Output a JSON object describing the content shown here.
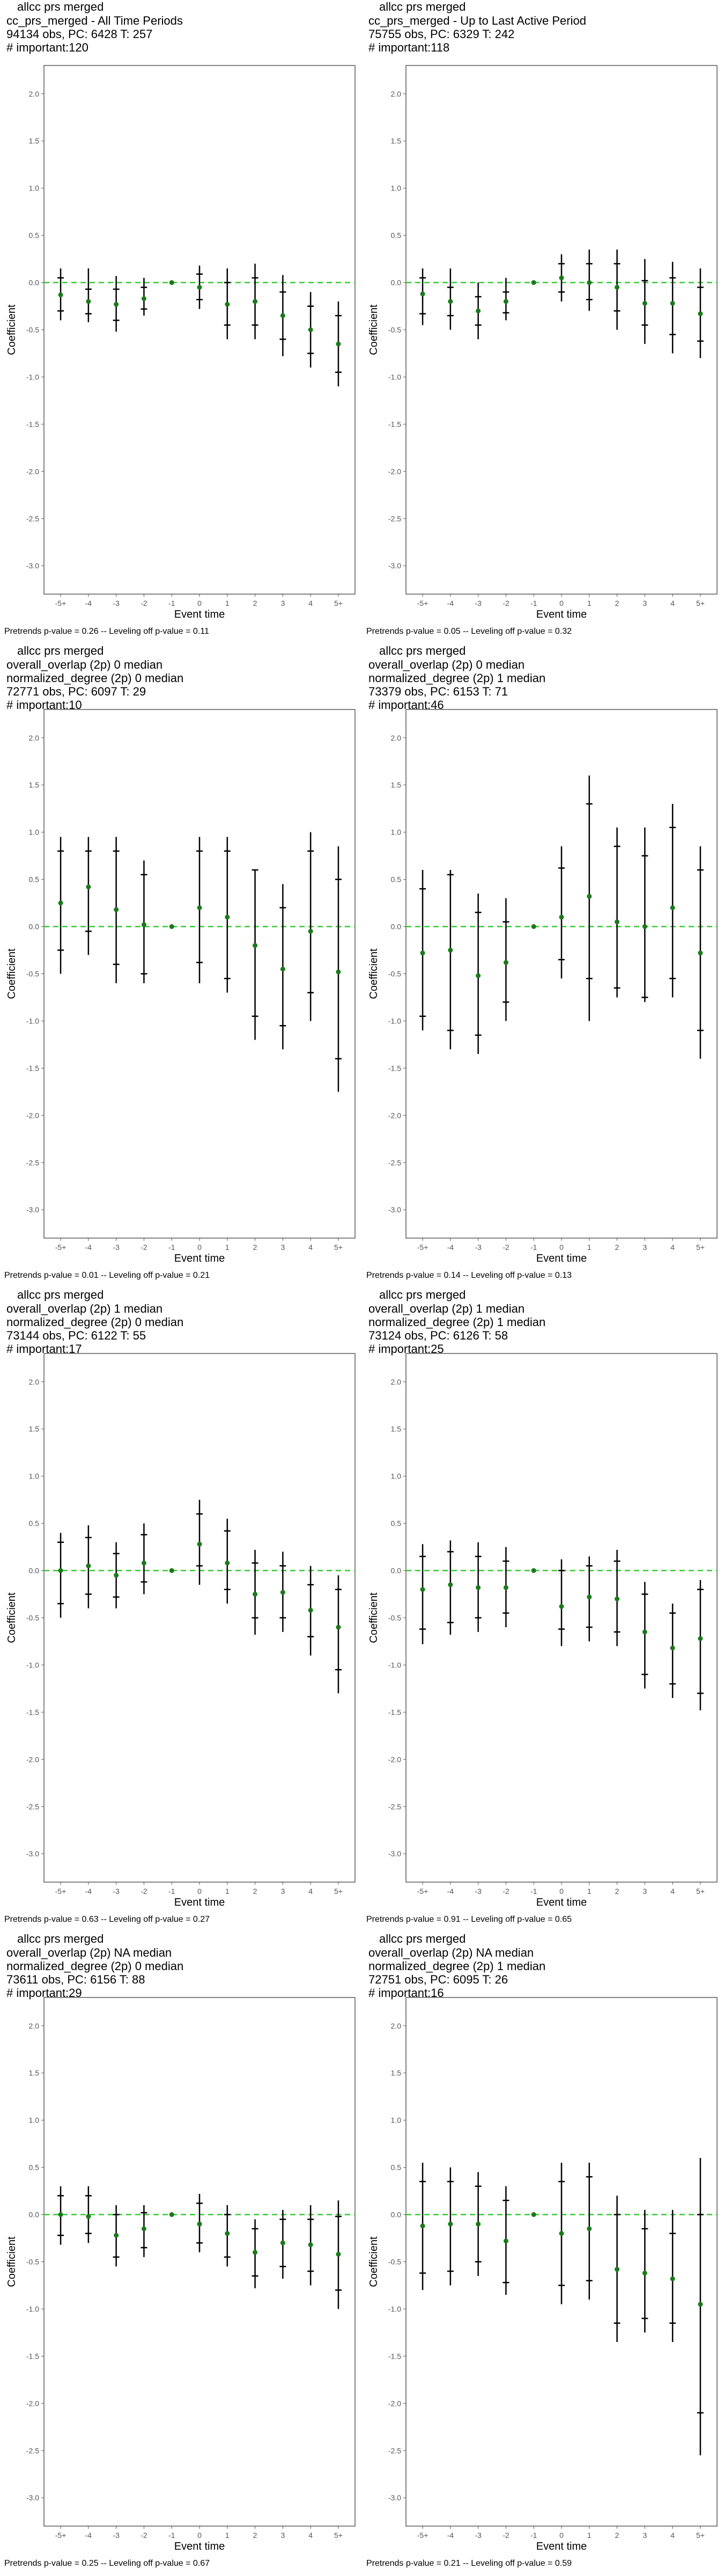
{
  "x_tick_labels": [
    "-5+",
    "-4",
    "-3",
    "-2",
    "-1",
    "0",
    "1",
    "2",
    "3",
    "4",
    "5+"
  ],
  "xlabel": "Event time",
  "ylabel": "Coefficient",
  "y_ticks": [
    2.0,
    1.5,
    1.0,
    0.5,
    0.0,
    -0.5,
    -1.0,
    -1.5,
    -2.0,
    -2.5,
    -3.0
  ],
  "y_tick_labels": [
    "2.0",
    "1.5",
    "1.0",
    "0.5",
    "0.0",
    "-0.5",
    "-1.0",
    "-1.5",
    "-2.0",
    "-2.5",
    "-3.0"
  ],
  "colors": {
    "point": "#1a7a1a",
    "reference_line": "#33cc33",
    "error_bar": "#000000",
    "panel_border": "#333333"
  },
  "chart_data": [
    {
      "type": "scatter",
      "title": "allcc prs merged",
      "subtitle": [
        "cc_prs_merged - All Time Periods",
        "94134 obs, PC: 6428 T: 257",
        "# important:120"
      ],
      "footnote": "Pretrends p-value = 0.26 -- Leveling off p-value = 0.11",
      "xlabel": "Event time",
      "ylabel": "Coefficient",
      "ylim": [
        -3.3,
        2.3
      ],
      "reference_y": 0,
      "x": [
        "-5+",
        "-4",
        "-3",
        "-2",
        "-1",
        "0",
        "1",
        "2",
        "3",
        "4",
        "5+"
      ],
      "estimate": [
        -0.13,
        -0.2,
        -0.23,
        -0.17,
        0.0,
        -0.05,
        -0.23,
        -0.2,
        -0.35,
        -0.5,
        -0.65
      ],
      "ci_outer_low": [
        -0.4,
        -0.42,
        -0.52,
        -0.35,
        0.0,
        -0.28,
        -0.6,
        -0.6,
        -0.78,
        -0.9,
        -1.1
      ],
      "ci_outer_high": [
        0.15,
        0.15,
        0.07,
        0.05,
        0.0,
        0.18,
        0.15,
        0.2,
        0.08,
        -0.1,
        -0.2
      ],
      "ci_inner_low": [
        -0.3,
        -0.33,
        -0.4,
        -0.28,
        0.0,
        -0.18,
        -0.45,
        -0.45,
        -0.6,
        -0.75,
        -0.95
      ],
      "ci_inner_high": [
        0.05,
        -0.07,
        -0.07,
        -0.05,
        0.0,
        0.09,
        0.0,
        0.05,
        -0.1,
        -0.25,
        -0.35
      ]
    },
    {
      "type": "scatter",
      "title": "allcc prs merged",
      "subtitle": [
        "cc_prs_merged - Up to Last Active Period",
        "75755 obs, PC: 6329 T: 242",
        "# important:118"
      ],
      "footnote": "Pretrends p-value = 0.05 -- Leveling off p-value = 0.32",
      "xlabel": "Event time",
      "ylabel": "Coefficient",
      "ylim": [
        -3.3,
        2.3
      ],
      "reference_y": 0,
      "x": [
        "-5+",
        "-4",
        "-3",
        "-2",
        "-1",
        "0",
        "1",
        "2",
        "3",
        "4",
        "5+"
      ],
      "estimate": [
        -0.12,
        -0.2,
        -0.3,
        -0.2,
        0.0,
        0.05,
        0.0,
        -0.05,
        -0.22,
        -0.22,
        -0.33
      ],
      "ci_outer_low": [
        -0.45,
        -0.5,
        -0.6,
        -0.4,
        0.0,
        -0.2,
        -0.3,
        -0.5,
        -0.65,
        -0.75,
        -0.8
      ],
      "ci_outer_high": [
        0.15,
        0.15,
        0.0,
        0.05,
        0.0,
        0.3,
        0.35,
        0.35,
        0.25,
        0.22,
        0.15
      ],
      "ci_inner_low": [
        -0.33,
        -0.35,
        -0.45,
        -0.32,
        0.0,
        -0.1,
        -0.18,
        -0.3,
        -0.45,
        -0.55,
        -0.62
      ],
      "ci_inner_high": [
        0.05,
        -0.05,
        -0.15,
        -0.1,
        0.0,
        0.2,
        0.2,
        0.2,
        0.02,
        0.05,
        -0.05
      ]
    },
    {
      "type": "scatter",
      "title": "allcc prs merged",
      "subtitle": [
        "overall_overlap (2p) 0 median",
        "normalized_degree (2p) 0 median",
        "72771 obs, PC: 6097 T: 29",
        "# important:10"
      ],
      "footnote": "Pretrends p-value = 0.01 -- Leveling off p-value = 0.21",
      "xlabel": "Event time",
      "ylabel": "Coefficient",
      "ylim": [
        -3.3,
        2.3
      ],
      "reference_y": 0,
      "x": [
        "-5+",
        "-4",
        "-3",
        "-2",
        "-1",
        "0",
        "1",
        "2",
        "3",
        "4",
        "5+"
      ],
      "estimate": [
        0.25,
        0.42,
        0.18,
        0.02,
        0.0,
        0.2,
        0.1,
        -0.2,
        -0.45,
        -0.05,
        -0.48
      ],
      "ci_outer_low": [
        -0.5,
        -0.3,
        -0.6,
        -0.6,
        0.0,
        -0.6,
        -0.7,
        -1.2,
        -1.3,
        -1.0,
        -1.75
      ],
      "ci_outer_high": [
        0.95,
        0.95,
        0.95,
        0.7,
        0.0,
        0.95,
        0.95,
        0.6,
        0.45,
        1.0,
        0.85
      ],
      "ci_inner_low": [
        -0.25,
        -0.05,
        -0.4,
        -0.5,
        0.0,
        -0.38,
        -0.55,
        -0.95,
        -1.05,
        -0.7,
        -1.4
      ],
      "ci_inner_high": [
        0.8,
        0.8,
        0.8,
        0.55,
        0.0,
        0.8,
        0.8,
        0.6,
        0.2,
        0.8,
        0.5
      ]
    },
    {
      "type": "scatter",
      "title": "allcc prs merged",
      "subtitle": [
        "overall_overlap (2p) 0 median",
        "normalized_degree (2p) 1 median",
        "73379 obs, PC: 6153 T: 71",
        "# important:46"
      ],
      "footnote": "Pretrends p-value = 0.14 -- Leveling off p-value = 0.13",
      "xlabel": "Event time",
      "ylabel": "Coefficient",
      "ylim": [
        -3.3,
        2.3
      ],
      "reference_y": 0,
      "x": [
        "-5+",
        "-4",
        "-3",
        "-2",
        "-1",
        "0",
        "1",
        "2",
        "3",
        "4",
        "5+"
      ],
      "estimate": [
        -0.28,
        -0.25,
        -0.52,
        -0.38,
        0.0,
        0.1,
        0.32,
        0.05,
        0.0,
        0.2,
        -0.28
      ],
      "ci_outer_low": [
        -1.1,
        -1.3,
        -1.35,
        -1.0,
        0.0,
        -0.55,
        -1.0,
        -0.75,
        -0.8,
        -0.75,
        -1.4
      ],
      "ci_outer_high": [
        0.6,
        0.6,
        0.35,
        0.3,
        0.0,
        0.85,
        1.6,
        1.05,
        1.05,
        1.3,
        0.85
      ],
      "ci_inner_low": [
        -0.95,
        -1.1,
        -1.15,
        -0.8,
        0.0,
        -0.35,
        -0.55,
        -0.65,
        -0.75,
        -0.55,
        -1.1
      ],
      "ci_inner_high": [
        0.4,
        0.55,
        0.15,
        0.05,
        0.0,
        0.62,
        1.3,
        0.85,
        0.75,
        1.05,
        0.6
      ]
    },
    {
      "type": "scatter",
      "title": "allcc prs merged",
      "subtitle": [
        "overall_overlap (2p) 1 median",
        "normalized_degree (2p) 0 median",
        "73144 obs, PC: 6122 T: 55",
        "# important:17"
      ],
      "footnote": "Pretrends p-value = 0.63 -- Leveling off p-value = 0.27",
      "xlabel": "Event time",
      "ylabel": "Coefficient",
      "ylim": [
        -3.3,
        2.3
      ],
      "reference_y": 0,
      "x": [
        "-5+",
        "-4",
        "-3",
        "-2",
        "-1",
        "0",
        "1",
        "2",
        "3",
        "4",
        "5+"
      ],
      "estimate": [
        0.0,
        0.05,
        -0.05,
        0.08,
        0.0,
        0.28,
        0.08,
        -0.25,
        -0.23,
        -0.42,
        -0.6
      ],
      "ci_outer_low": [
        -0.5,
        -0.4,
        -0.4,
        -0.25,
        0.0,
        -0.15,
        -0.35,
        -0.68,
        -0.65,
        -0.9,
        -1.3
      ],
      "ci_outer_high": [
        0.4,
        0.48,
        0.3,
        0.5,
        0.0,
        0.75,
        0.55,
        0.22,
        0.2,
        0.05,
        -0.05
      ],
      "ci_inner_low": [
        -0.35,
        -0.25,
        -0.28,
        -0.12,
        0.0,
        0.05,
        -0.2,
        -0.5,
        -0.5,
        -0.7,
        -1.05
      ],
      "ci_inner_high": [
        0.3,
        0.35,
        0.18,
        0.38,
        0.0,
        0.6,
        0.42,
        0.08,
        0.05,
        -0.15,
        -0.2
      ]
    },
    {
      "type": "scatter",
      "title": "allcc prs merged",
      "subtitle": [
        "overall_overlap (2p) 1 median",
        "normalized_degree (2p) 1 median",
        "73124 obs, PC: 6126 T: 58",
        "# important:25"
      ],
      "footnote": "Pretrends p-value = 0.91 -- Leveling off p-value = 0.65",
      "xlabel": "Event time",
      "ylabel": "Coefficient",
      "ylim": [
        -3.3,
        2.3
      ],
      "reference_y": 0,
      "x": [
        "-5+",
        "-4",
        "-3",
        "-2",
        "-1",
        "0",
        "1",
        "2",
        "3",
        "4",
        "5+"
      ],
      "estimate": [
        -0.2,
        -0.15,
        -0.18,
        -0.18,
        0.0,
        -0.38,
        -0.28,
        -0.3,
        -0.65,
        -0.82,
        -0.72
      ],
      "ci_outer_low": [
        -0.78,
        -0.68,
        -0.65,
        -0.6,
        0.0,
        -0.8,
        -0.75,
        -0.8,
        -1.25,
        -1.35,
        -1.48
      ],
      "ci_outer_high": [
        0.28,
        0.32,
        0.3,
        0.25,
        0.0,
        0.12,
        0.15,
        0.22,
        -0.12,
        -0.35,
        -0.1
      ],
      "ci_inner_low": [
        -0.62,
        -0.55,
        -0.5,
        -0.45,
        0.0,
        -0.62,
        -0.6,
        -0.65,
        -1.1,
        -1.2,
        -1.3
      ],
      "ci_inner_high": [
        0.15,
        0.2,
        0.15,
        0.1,
        0.0,
        0.0,
        0.05,
        0.1,
        -0.25,
        -0.45,
        -0.2
      ]
    },
    {
      "type": "scatter",
      "title": "allcc prs merged",
      "subtitle": [
        "overall_overlap (2p) NA median",
        "normalized_degree (2p) 0 median",
        "73611 obs, PC: 6156 T: 88",
        "# important:29"
      ],
      "footnote": "Pretrends p-value = 0.25 -- Leveling off p-value = 0.67",
      "xlabel": "Event time",
      "ylabel": "Coefficient",
      "ylim": [
        -3.3,
        2.3
      ],
      "reference_y": 0,
      "x": [
        "-5+",
        "-4",
        "-3",
        "-2",
        "-1",
        "0",
        "1",
        "2",
        "3",
        "4",
        "5+"
      ],
      "estimate": [
        0.0,
        -0.02,
        -0.22,
        -0.15,
        0.0,
        -0.1,
        -0.2,
        -0.4,
        -0.3,
        -0.32,
        -0.42
      ],
      "ci_outer_low": [
        -0.32,
        -0.3,
        -0.55,
        -0.45,
        0.0,
        -0.4,
        -0.55,
        -0.78,
        -0.68,
        -0.75,
        -1.0
      ],
      "ci_outer_high": [
        0.3,
        0.3,
        0.1,
        0.1,
        0.0,
        0.22,
        0.1,
        -0.05,
        0.05,
        0.1,
        0.15
      ],
      "ci_inner_low": [
        -0.22,
        -0.2,
        -0.45,
        -0.35,
        0.0,
        -0.3,
        -0.45,
        -0.65,
        -0.55,
        -0.6,
        -0.8
      ],
      "ci_inner_high": [
        0.2,
        0.2,
        0.0,
        0.02,
        0.0,
        0.12,
        0.0,
        -0.15,
        -0.05,
        -0.05,
        -0.02
      ]
    },
    {
      "type": "scatter",
      "title": "allcc prs merged",
      "subtitle": [
        "overall_overlap (2p) NA median",
        "normalized_degree (2p) 1 median",
        "72751 obs, PC: 6095 T: 26",
        "# important:16"
      ],
      "footnote": "Pretrends p-value = 0.21 -- Leveling off p-value = 0.59",
      "xlabel": "Event time",
      "ylabel": "Coefficient",
      "ylim": [
        -3.3,
        2.3
      ],
      "reference_y": 0,
      "x": [
        "-5+",
        "-4",
        "-3",
        "-2",
        "-1",
        "0",
        "1",
        "2",
        "3",
        "4",
        "5+"
      ],
      "estimate": [
        -0.12,
        -0.1,
        -0.1,
        -0.28,
        0.0,
        -0.2,
        -0.15,
        -0.58,
        -0.62,
        -0.68,
        -0.95
      ],
      "ci_outer_low": [
        -0.8,
        -0.75,
        -0.65,
        -0.85,
        0.0,
        -0.95,
        -0.9,
        -1.35,
        -1.25,
        -1.35,
        -2.55
      ],
      "ci_outer_high": [
        0.55,
        0.5,
        0.45,
        0.3,
        0.0,
        0.55,
        0.55,
        0.2,
        0.05,
        0.05,
        0.6
      ],
      "ci_inner_low": [
        -0.62,
        -0.6,
        -0.5,
        -0.72,
        0.0,
        -0.75,
        -0.7,
        -1.15,
        -1.1,
        -1.15,
        -2.1
      ],
      "ci_inner_high": [
        0.35,
        0.35,
        0.3,
        0.15,
        0.0,
        0.35,
        0.4,
        0.0,
        -0.15,
        -0.2,
        0.0
      ]
    }
  ]
}
